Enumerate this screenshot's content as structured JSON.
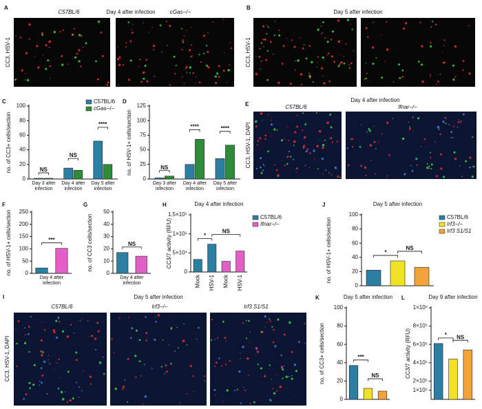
{
  "image_panels": [
    {
      "label": "A",
      "title": "Day 4 after infection",
      "captions": [
        "C57BL/6",
        "cGas−/−"
      ],
      "stain": "CC3, HSV-1"
    },
    {
      "label": "B",
      "title": "Day 5 after infection",
      "stain": "CC3, HSV-1"
    },
    {
      "label": "E",
      "title": "Day 4 after infection",
      "captions": [
        "C57BL/6",
        "Ifnar−/−"
      ],
      "stain": "CC3, HSV-1, DAPI"
    },
    {
      "label": "I",
      "title": "Day 5 after infection",
      "captions": [
        "C57BL/6",
        "Irf3−/−",
        "Irf3 S1/S1"
      ],
      "stain": "CC3, HSV-1, DAPI"
    }
  ],
  "chart_data": [
    {
      "type": "bar",
      "label": "C",
      "ylabel": "no. of CC3+ cells/section",
      "categories": [
        "Day 3 after infection",
        "Day 4 after infection",
        "Day 5 after infection"
      ],
      "series": [
        {
          "name": "C57BL/6",
          "color": "#2b7fa3",
          "values": [
            1,
            15,
            52
          ]
        },
        {
          "name": "cGas−/−",
          "color": "#2e8b3a",
          "values": [
            1,
            12,
            20
          ]
        }
      ],
      "ylim": [
        0,
        100
      ],
      "yticks": [
        0,
        20,
        40,
        60,
        80,
        100
      ],
      "annotations": [
        "NS",
        "NS",
        "****"
      ],
      "legend": "upper right"
    },
    {
      "type": "bar",
      "label": "D",
      "ylabel": "no. of HSV-1+ cells/section",
      "categories": [
        "Day 3 after infection",
        "Day 4 after infection",
        "Day 5 after infection"
      ],
      "series": [
        {
          "color": "#2b7fa3",
          "values": [
            2,
            25,
            35
          ]
        },
        {
          "color": "#2e8b3a",
          "values": [
            5,
            68,
            58
          ]
        }
      ],
      "ylim": [
        0,
        125
      ],
      "yticks": [
        0,
        25,
        50,
        75,
        100,
        125
      ],
      "annotations": [
        "NS",
        "****",
        "****"
      ]
    },
    {
      "type": "bar",
      "label": "F",
      "ylabel": "no. of HSV-1+ cells/section",
      "xlabel": "Day 4 after infection",
      "values": [
        22,
        102
      ],
      "colors": [
        "#2b7fa3",
        "#e35fc8"
      ],
      "ylim": [
        0,
        250
      ],
      "yticks": [
        0,
        50,
        100,
        150,
        200,
        250
      ],
      "annotations": [
        "***"
      ]
    },
    {
      "type": "bar",
      "label": "G",
      "ylabel": "no. of CC3 cells/section",
      "xlabel": "Day 4 after infection",
      "values": [
        17,
        14
      ],
      "colors": [
        "#2b7fa3",
        "#e35fc8"
      ],
      "ylim": [
        0,
        50
      ],
      "yticks": [
        0,
        10,
        20,
        30,
        40,
        50
      ],
      "annotations": [
        "NS"
      ]
    },
    {
      "type": "bar",
      "label": "H",
      "title": "Day 4 after infection",
      "ylabel": "CC3/7 activity (RFU)",
      "categories": [
        "Mock",
        "HSV-1",
        "Mock",
        "HSV-1"
      ],
      "values": [
        33000,
        73000,
        28000,
        55000
      ],
      "colors": [
        "#2b7fa3",
        "#2b7fa3",
        "#e35fc8",
        "#e35fc8"
      ],
      "ylim": [
        0,
        150000
      ],
      "yticks": [
        0,
        {
          "value": 50000,
          "label": "5×10⁴"
        },
        {
          "value": 100000,
          "label": "1×10⁵"
        },
        {
          "value": 150000,
          "label": "1.5×10⁵"
        }
      ],
      "legend_entries": [
        {
          "name": "C57BL/6",
          "color": "#2b7fa3"
        },
        {
          "name": "Ifnar−/−",
          "color": "#e35fc8"
        }
      ],
      "annotations": [
        "*",
        "NS"
      ]
    },
    {
      "type": "bar",
      "label": "J",
      "title": "Day 5 after infection",
      "ylabel": "no. of HSV-1+ cells/section",
      "values": [
        22,
        35,
        26
      ],
      "colors": [
        "#2b7fa3",
        "#f2e226",
        "#f2a43a"
      ],
      "ylim": [
        0,
        100
      ],
      "yticks": [
        0,
        20,
        40,
        60,
        80,
        100
      ],
      "legend_entries": [
        {
          "name": "C57BL/6",
          "color": "#2b7fa3"
        },
        {
          "name": "Irf3−/−",
          "color": "#f2e226"
        },
        {
          "name": "Irf3 S1/S1",
          "color": "#f2a43a"
        }
      ],
      "annotations": [
        "*",
        "NS"
      ]
    },
    {
      "type": "bar",
      "label": "K",
      "title": "Day 5 after infection",
      "ylabel": "no. of CC3+ cells/section",
      "values": [
        37,
        12,
        9
      ],
      "colors": [
        "#2b7fa3",
        "#f2e226",
        "#f2a43a"
      ],
      "ylim": [
        0,
        100
      ],
      "yticks": [
        0,
        20,
        40,
        60,
        80,
        100
      ],
      "annotations": [
        "***",
        "NS"
      ]
    },
    {
      "type": "bar",
      "label": "L",
      "title": "Day 9 after infection",
      "ylabel": "CC3/7 activity (RFU)",
      "values": [
        610000,
        440000,
        540000
      ],
      "colors": [
        "#2b7fa3",
        "#f2e226",
        "#f2a43a"
      ],
      "ylim": [
        0,
        1000000
      ],
      "yticks": [
        {
          "value": 100000,
          "label": "1×10⁵"
        },
        {
          "value": 200000,
          "label": "2×10⁵"
        },
        {
          "value": 400000,
          "label": "4×10⁵"
        },
        {
          "value": 600000,
          "label": "6×10⁵"
        },
        {
          "value": 800000,
          "label": "8×10⁵"
        },
        {
          "value": 1000000,
          "label": "1×10⁶"
        }
      ],
      "annotations": [
        "*",
        "NS"
      ]
    }
  ]
}
